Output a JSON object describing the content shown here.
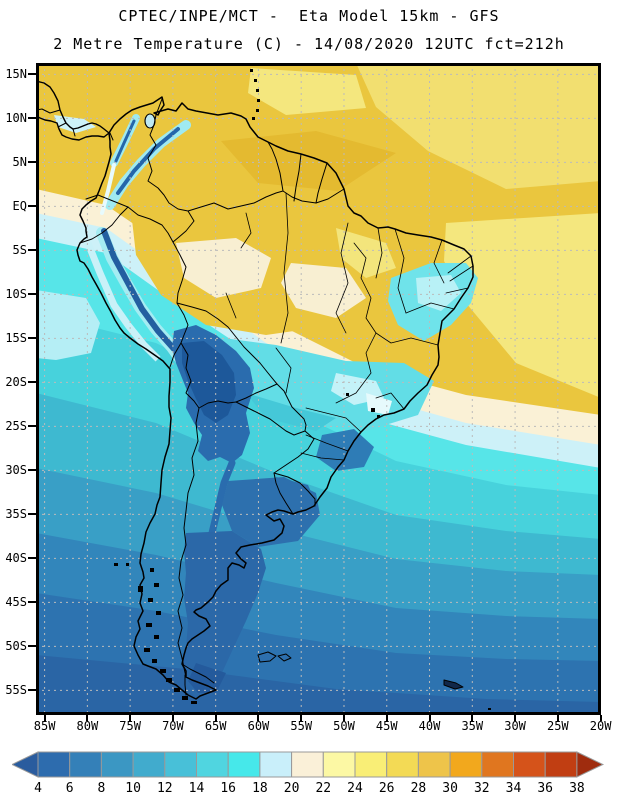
{
  "header": {
    "title_line1": "CPTEC/INPE/MCT -  Eta Model 15km - GFS",
    "title_line2": "2 Metre Temperature (C) - 14/08/2020 12UTC fct=212h"
  },
  "axes": {
    "lat_labels": [
      "15N",
      "10N",
      "5N",
      "EQ",
      "5S",
      "10S",
      "15S",
      "20S",
      "25S",
      "30S",
      "35S",
      "40S",
      "45S",
      "50S",
      "55S"
    ],
    "lon_labels": [
      "85W",
      "80W",
      "75W",
      "70W",
      "65W",
      "60W",
      "55W",
      "50W",
      "45W",
      "40W",
      "35W",
      "30W",
      "25W",
      "20W"
    ]
  },
  "colorbar": {
    "values": [
      "4",
      "6",
      "8",
      "10",
      "12",
      "14",
      "16",
      "18",
      "20",
      "22",
      "24",
      "26",
      "28",
      "30",
      "32",
      "34",
      "36",
      "38"
    ],
    "segment_colors": [
      "#2d6cae",
      "#3480b8",
      "#3b97c3",
      "#41abcd",
      "#48c0d8",
      "#50d5e0",
      "#46e8ea",
      "#c9effa",
      "#faf0d8",
      "#fcf8a4",
      "#f9ee76",
      "#f3da55",
      "#eec44a",
      "#f2a81d",
      "#e0761f",
      "#d5531a",
      "#c13e12"
    ],
    "arrow_left_color": "#2a5c9e",
    "arrow_right_color": "#9f2c0e",
    "outline_color": "#999999"
  },
  "map_style": {
    "grid_color": "#bbbbbb",
    "frame_color": "#000000",
    "warmest_color": "#eac63e",
    "coldest_color": "#1d589a"
  }
}
